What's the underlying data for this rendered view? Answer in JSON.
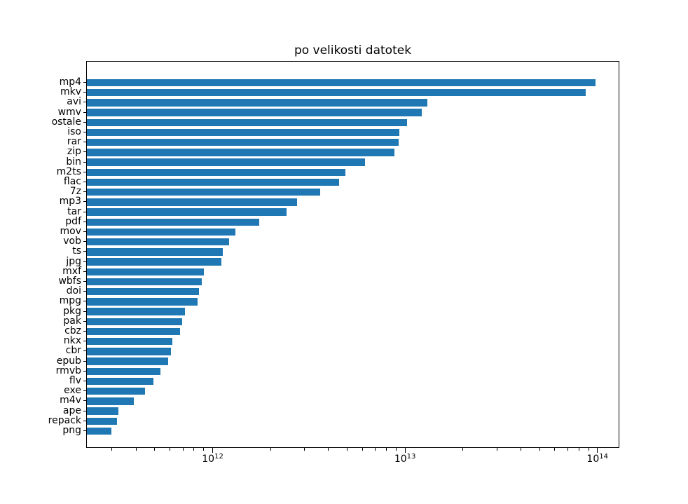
{
  "chart_data": {
    "type": "bar",
    "orientation": "horizontal",
    "title": "po velikosti datotek",
    "xlabel": "",
    "ylabel": "",
    "x_scale": "log",
    "xlim": [
      220000000000.0,
      130000000000000.0
    ],
    "grid": false,
    "legend": null,
    "bar_color": "#1f77b4",
    "categories": [
      "mp4",
      "mkv",
      "avi",
      "wmv",
      "ostale",
      "iso",
      "rar",
      "zip",
      "bin",
      "m2ts",
      "flac",
      "7z",
      "mp3",
      "tar",
      "pdf",
      "mov",
      "vob",
      "ts",
      "jpg",
      "mxf",
      "wbfs",
      "doi",
      "mpg",
      "pkg",
      "pak",
      "cbz",
      "nkx",
      "cbr",
      "epub",
      "rmvb",
      "flv",
      "exe",
      "m4v",
      "ape",
      "repack",
      "png"
    ],
    "values": [
      97000000000000.0,
      86000000000000.0,
      13000000000000.0,
      12100000000000.0,
      10200000000000.0,
      9300000000000.0,
      9150000000000.0,
      8750000000000.0,
      6150000000000.0,
      4850000000000.0,
      4500000000000.0,
      3600000000000.0,
      2730000000000.0,
      2400000000000.0,
      1730000000000.0,
      1300000000000.0,
      1210000000000.0,
      1120000000000.0,
      1100000000000.0,
      890000000000.0,
      870000000000.0,
      840000000000.0,
      830000000000.0,
      710000000000.0,
      690000000000.0,
      670000000000.0,
      610000000000.0,
      600000000000.0,
      580000000000.0,
      530000000000.0,
      490000000000.0,
      440000000000.0,
      385000000000.0,
      320000000000.0,
      315000000000.0,
      295000000000.0
    ],
    "x_ticks": [
      {
        "base": "10",
        "exp": "12",
        "value": 1000000000000.0
      },
      {
        "base": "10",
        "exp": "13",
        "value": 10000000000000.0
      },
      {
        "base": "10",
        "exp": "14",
        "value": 100000000000000.0
      }
    ]
  }
}
